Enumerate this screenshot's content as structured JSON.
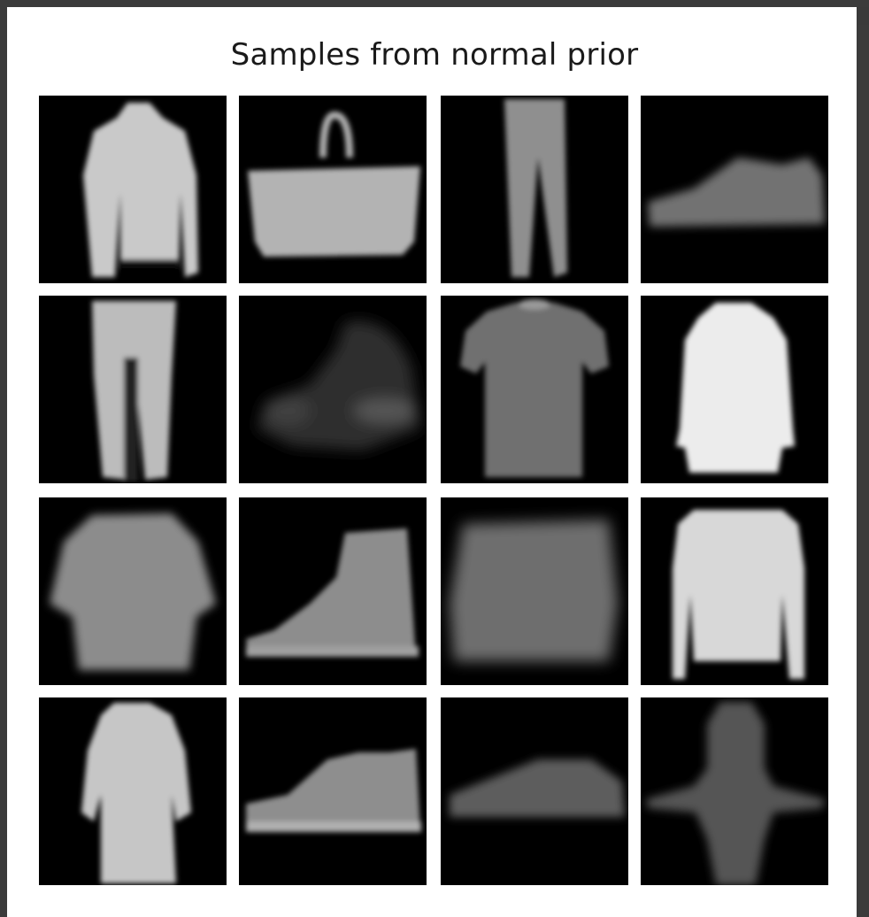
{
  "figure": {
    "title": "Samples from normal prior"
  },
  "grid": {
    "rows": 4,
    "cols": 4,
    "samples": [
      {
        "item": "long-sleeve top"
      },
      {
        "item": "handbag"
      },
      {
        "item": "trousers"
      },
      {
        "item": "sneaker"
      },
      {
        "item": "trousers"
      },
      {
        "item": "blurry bag"
      },
      {
        "item": "t-shirt"
      },
      {
        "item": "pullover"
      },
      {
        "item": "blurry shirt"
      },
      {
        "item": "ankle boot"
      },
      {
        "item": "blurry coat"
      },
      {
        "item": "long-sleeve top"
      },
      {
        "item": "dress"
      },
      {
        "item": "sneaker"
      },
      {
        "item": "sandal"
      },
      {
        "item": "blurry figure"
      }
    ]
  }
}
